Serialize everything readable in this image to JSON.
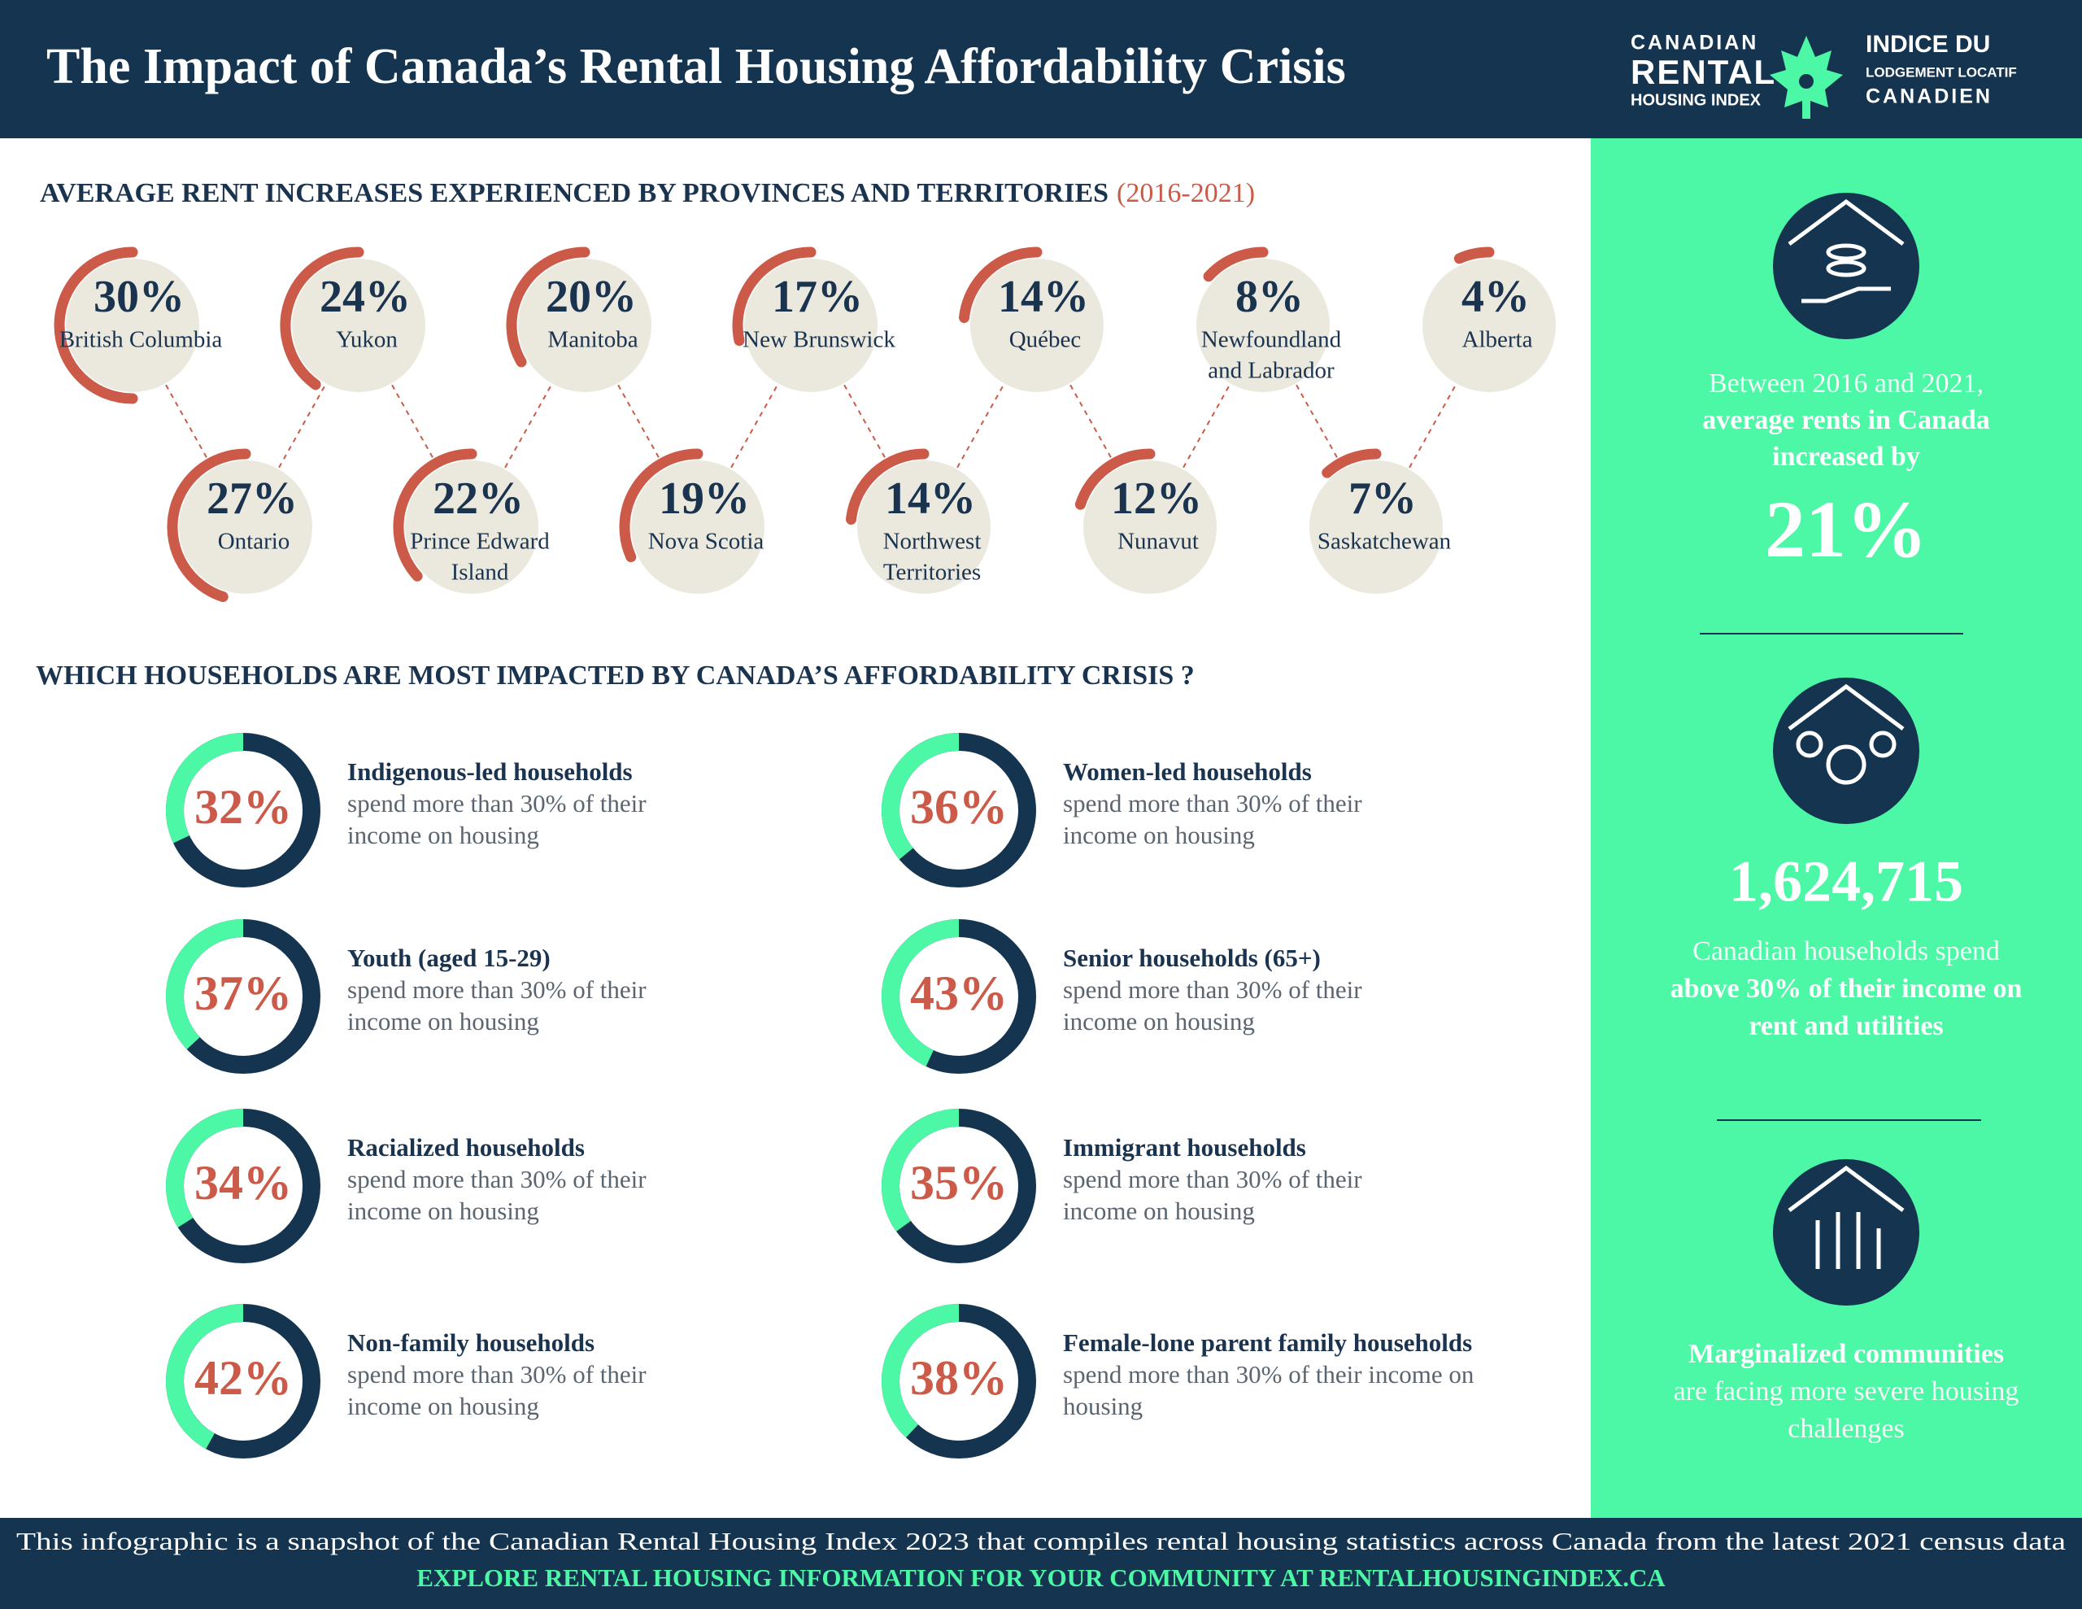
{
  "header": {
    "title": "The Impact of Canada’s Rental Housing Affordability Crisis",
    "logo": {
      "en": [
        "CANADIAN",
        "RENTAL",
        "HOUSING INDEX"
      ],
      "fr": [
        "INDICE DU",
        "LODGEMENT LOCATIF",
        "CANADIEN"
      ]
    }
  },
  "rent_increases": {
    "title": "AVERAGE RENT INCREASES EXPERIENCED BY PROVINCES AND TERRITORIES",
    "period": "(2016-2021)",
    "items": [
      {
        "name": [
          "British Columbia"
        ],
        "value": 30,
        "value_label": "30%"
      },
      {
        "name": [
          "Ontario"
        ],
        "value": 27,
        "value_label": "27%"
      },
      {
        "name": [
          "Yukon"
        ],
        "value": 24,
        "value_label": "24%"
      },
      {
        "name": [
          "Prince Edward",
          "Island"
        ],
        "value": 22,
        "value_label": "22%"
      },
      {
        "name": [
          "Manitoba"
        ],
        "value": 20,
        "value_label": "20%"
      },
      {
        "name": [
          "Nova Scotia"
        ],
        "value": 19,
        "value_label": "19%"
      },
      {
        "name": [
          "New Brunswick"
        ],
        "value": 17,
        "value_label": "17%"
      },
      {
        "name": [
          "Northwest",
          "Territories"
        ],
        "value": 14,
        "value_label": "14%"
      },
      {
        "name": [
          "Québec"
        ],
        "value": 14,
        "value_label": "14%"
      },
      {
        "name": [
          "Nunavut"
        ],
        "value": 12,
        "value_label": "12%"
      },
      {
        "name": [
          "Newfoundland",
          "and Labrador"
        ],
        "value": 8,
        "value_label": "8%"
      },
      {
        "name": [
          "Saskatchewan"
        ],
        "value": 7,
        "value_label": "7%"
      },
      {
        "name": [
          "Alberta"
        ],
        "value": 4,
        "value_label": "4%"
      }
    ]
  },
  "households": {
    "title": "WHICH HOUSEHOLDS ARE MOST IMPACTED BY CANADA’S AFFORDABILITY CRISIS ?",
    "items": [
      {
        "label": "Indigenous-led households",
        "description": [
          "spend more than 30% of their",
          "income on housing"
        ],
        "value": 32,
        "value_label": "32%"
      },
      {
        "label": "Women-led households",
        "description": [
          "spend more than 30% of their",
          "income on housing"
        ],
        "value": 36,
        "value_label": "36%"
      },
      {
        "label": "Youth (aged 15-29)",
        "description": [
          "spend more than 30% of their",
          "income on housing"
        ],
        "value": 37,
        "value_label": "37%"
      },
      {
        "label": "Senior households (65+)",
        "description": [
          "spend more than 30% of their",
          "income on housing"
        ],
        "value": 43,
        "value_label": "43%"
      },
      {
        "label": "Racialized households",
        "description": [
          "spend more than 30% of their",
          "income on housing"
        ],
        "value": 34,
        "value_label": "34%"
      },
      {
        "label": "Immigrant households",
        "description": [
          "spend more than 30% of their",
          "income on housing"
        ],
        "value": 35,
        "value_label": "35%"
      },
      {
        "label": "Non-family households",
        "description": [
          "spend more than 30% of their",
          "income on housing"
        ],
        "value": 42,
        "value_label": "42%"
      },
      {
        "label": "Female-lone parent family households",
        "description": [
          "spend more than 30% of their income on",
          "housing"
        ],
        "value": 38,
        "value_label": "38%"
      }
    ]
  },
  "sidebar": {
    "blocks": [
      {
        "before": [
          {
            "text": "Between 2016 and 2021,",
            "bold": false
          },
          {
            "text": "average rents in Canada",
            "bold": true
          },
          {
            "text": "increased by",
            "bold": true
          }
        ],
        "figure": "21%",
        "after": []
      },
      {
        "before": [],
        "figure": "1,624,715",
        "after": [
          {
            "text": "Canadian households spend",
            "bold": false
          },
          {
            "text": "above 30% of their income on",
            "bold": true
          },
          {
            "text": "rent and utilities",
            "bold": true
          }
        ]
      },
      {
        "before": [],
        "after": [
          {
            "text": "Marginalized communities",
            "bold": true
          },
          {
            "text": "are facing more severe housing",
            "bold": false
          },
          {
            "text": "challenges",
            "bold": false
          }
        ]
      }
    ]
  },
  "footer": {
    "note": "This infographic is a snapshot of the Canadian Rental Housing Index 2023 that compiles rental housing statistics across Canada from the latest 2021 census data",
    "cta": "EXPLORE RENTAL HOUSING INFORMATION FOR YOUR COMMUNITY AT RENTALHOUSINGINDEX.CA"
  }
}
